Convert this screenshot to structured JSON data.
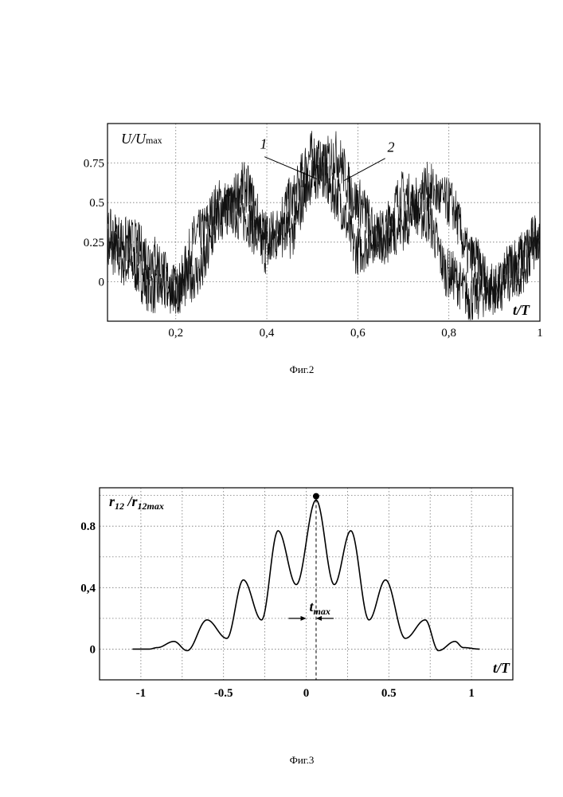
{
  "chart_data": [
    {
      "type": "line",
      "figure_caption": "Фиг.2",
      "ylabel": "U/U",
      "ylabel_sub": "max",
      "xlabel": "t/T",
      "xlim": [
        0.05,
        1.0
      ],
      "ylim": [
        -0.25,
        1.0
      ],
      "x_ticks": [
        0.2,
        0.4,
        0.6,
        0.8,
        1.0
      ],
      "x_tick_labels": [
        "0,2",
        "0,4",
        "0,6",
        "0,8",
        "1"
      ],
      "y_ticks": [
        0,
        0.25,
        0.5,
        0.75
      ],
      "y_tick_labels": [
        "0",
        "0.25",
        "0.5",
        "0.75"
      ],
      "grid": true,
      "annotations": [
        {
          "text": "1",
          "series": "1",
          "points_to_x": 0.51
        },
        {
          "text": "2",
          "series": "2",
          "points_to_x": 0.57
        }
      ],
      "series": [
        {
          "name": "1",
          "x": [
            0.05,
            0.1,
            0.15,
            0.2,
            0.25,
            0.3,
            0.35,
            0.4,
            0.45,
            0.5,
            0.55,
            0.6,
            0.65,
            0.7,
            0.75,
            0.8,
            0.85,
            0.9,
            0.95,
            1.0
          ],
          "y": [
            0.2,
            0.1,
            -0.05,
            -0.05,
            0.3,
            0.5,
            0.4,
            0.2,
            0.5,
            0.8,
            0.55,
            0.2,
            0.3,
            0.55,
            0.4,
            0.05,
            -0.1,
            -0.05,
            0.15,
            0.3
          ]
        },
        {
          "name": "2",
          "x": [
            0.05,
            0.1,
            0.15,
            0.2,
            0.25,
            0.3,
            0.35,
            0.4,
            0.45,
            0.5,
            0.55,
            0.6,
            0.65,
            0.7,
            0.75,
            0.8,
            0.85,
            0.9,
            0.95,
            1.0
          ],
          "y": [
            0.3,
            0.25,
            0.15,
            -0.05,
            0.05,
            0.4,
            0.6,
            0.3,
            0.3,
            0.65,
            0.8,
            0.5,
            0.25,
            0.35,
            0.6,
            0.5,
            0.15,
            -0.05,
            0.05,
            0.25
          ]
        }
      ]
    },
    {
      "type": "line",
      "figure_caption": "Фиг.3",
      "ylabel": "r",
      "ylabel_parts": [
        "r",
        "12",
        " /r",
        "12max"
      ],
      "xlabel": "t/T",
      "xlim": [
        -1.25,
        1.25
      ],
      "ylim": [
        -0.2,
        1.05
      ],
      "x_ticks": [
        -1,
        -0.5,
        0,
        0.5,
        1
      ],
      "x_tick_labels": [
        "-1",
        "-0.5",
        "0",
        "0.5",
        "1"
      ],
      "y_ticks": [
        0,
        0.4,
        0.8
      ],
      "y_tick_labels": [
        "0",
        "0,4",
        "0.8"
      ],
      "grid": true,
      "peak": {
        "x": 0.06,
        "y": 1.0
      },
      "annotation": {
        "text": "t",
        "sub": "max",
        "x_from": 0,
        "x_to": 0.06
      },
      "series": [
        {
          "name": "",
          "x": [
            -1.05,
            -0.95,
            -0.9,
            -0.8,
            -0.72,
            -0.6,
            -0.48,
            -0.38,
            -0.27,
            -0.17,
            -0.06,
            0.06,
            0.17,
            0.27,
            0.38,
            0.48,
            0.6,
            0.72,
            0.8,
            0.9,
            0.95,
            1.05
          ],
          "y": [
            0,
            0,
            0.01,
            0.05,
            -0.01,
            0.19,
            0.07,
            0.45,
            0.19,
            0.77,
            0.42,
            0.97,
            0.42,
            0.77,
            0.19,
            0.45,
            0.07,
            0.19,
            -0.01,
            0.05,
            0.01,
            0
          ]
        }
      ]
    }
  ]
}
